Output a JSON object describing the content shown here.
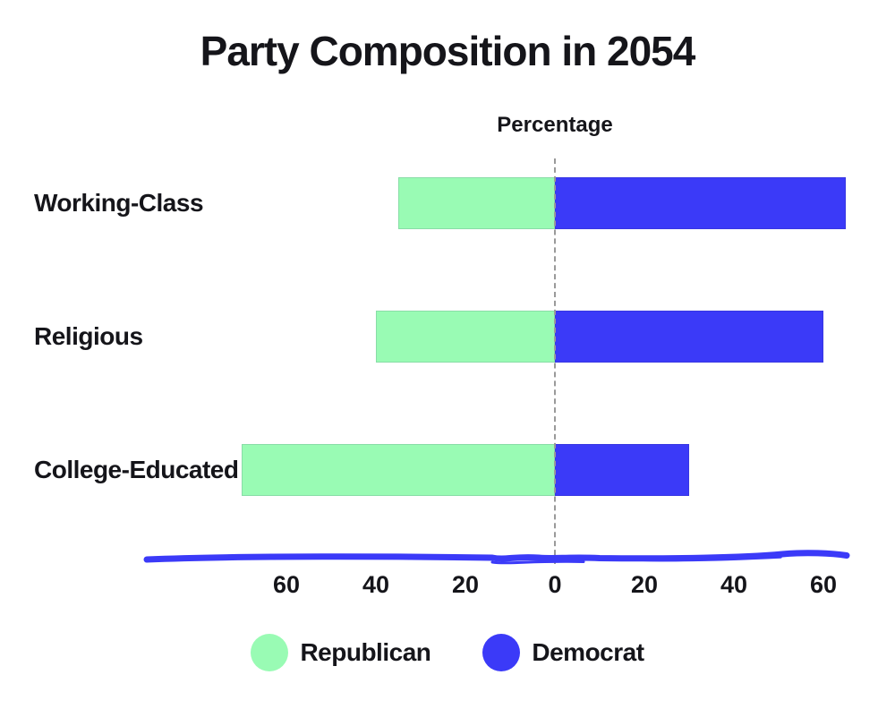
{
  "chart_data": {
    "type": "bar",
    "variant": "diverging-horizontal",
    "style": "hand-drawn",
    "title": "Party Composition in 2054",
    "xlabel": "Percentage",
    "categories": [
      "Working-Class",
      "Religious",
      "College-Educated"
    ],
    "series": [
      {
        "name": "Republican",
        "color": "#99fbb4",
        "side": "left",
        "values": [
          35,
          40,
          70
        ]
      },
      {
        "name": "Democrat",
        "color": "#3b3af8",
        "side": "right",
        "values": [
          65,
          60,
          30
        ]
      }
    ],
    "x_ticks": [
      {
        "value": -60,
        "label": "60"
      },
      {
        "value": -40,
        "label": "40"
      },
      {
        "value": -20,
        "label": "20"
      },
      {
        "value": 0,
        "label": "0"
      },
      {
        "value": 20,
        "label": "20"
      },
      {
        "value": 40,
        "label": "40"
      },
      {
        "value": 60,
        "label": "60"
      }
    ],
    "xlim": [
      -90,
      65
    ],
    "grid": false,
    "zero_line_style": "dashed",
    "zero_line_color": "#9a9a9a",
    "axis_line_color": "#3b3af8",
    "legend_position": "bottom"
  },
  "legend": {
    "items": [
      {
        "label": "Republican",
        "color": "#99fbb4"
      },
      {
        "label": "Democrat",
        "color": "#3b3af8"
      }
    ]
  }
}
